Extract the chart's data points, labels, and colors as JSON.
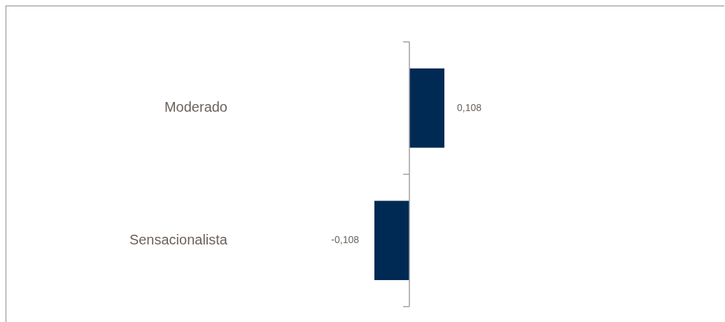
{
  "chart_data": {
    "type": "bar",
    "orientation": "horizontal",
    "categories": [
      "Moderado",
      "Sensacionalista"
    ],
    "values": [
      0.108,
      -0.108
    ],
    "color": "#002a54",
    "value_labels": [
      "0,108",
      "-0,108"
    ],
    "grid": false,
    "legend": false
  }
}
